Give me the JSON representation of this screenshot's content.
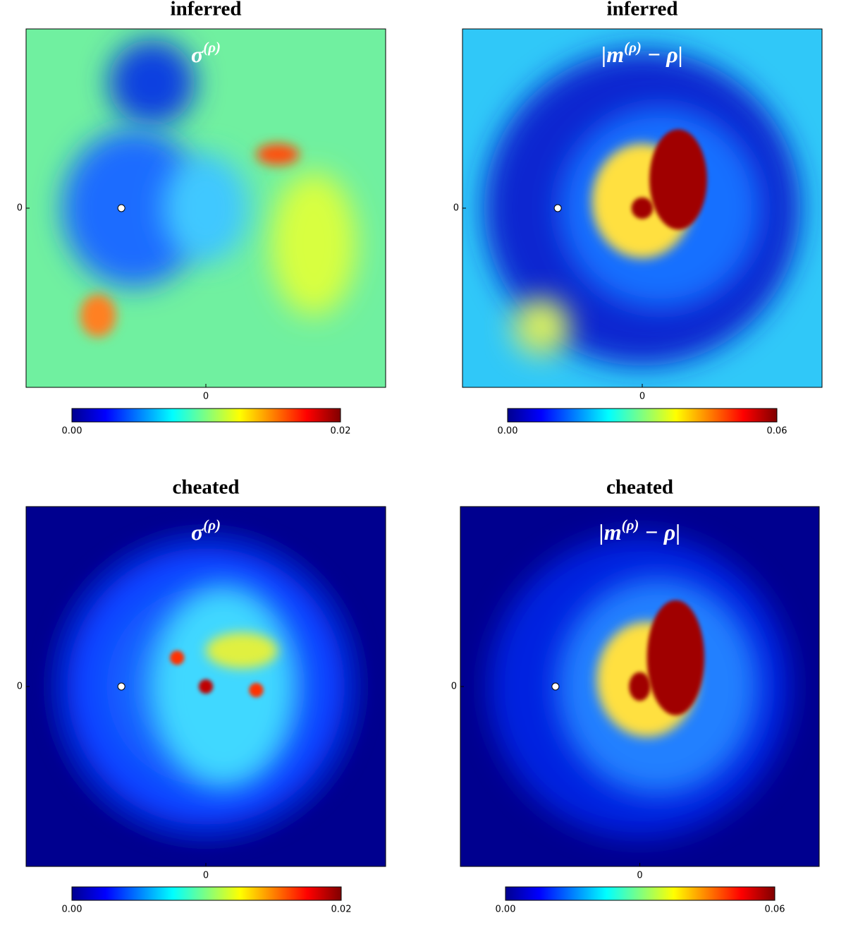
{
  "chart_data": [
    {
      "type": "heatmap",
      "title": "inferred",
      "annotation": [
        "σ",
        "(ρ)"
      ],
      "colormap": "jet",
      "xlim": [
        -1,
        1
      ],
      "ylim": [
        -1,
        1
      ],
      "xticks": [
        0
      ],
      "yticks": [
        0
      ],
      "clim": [
        0,
        0.02
      ],
      "cticks": [
        {
          "value": 0,
          "label": "0.00"
        },
        {
          "value": 0.02,
          "label": "0.02"
        }
      ]
    },
    {
      "type": "heatmap",
      "title": "inferred",
      "annotation": [
        "|m",
        "(ρ)",
        " − ρ|"
      ],
      "colormap": "jet",
      "xlim": [
        -1,
        1
      ],
      "ylim": [
        -1,
        1
      ],
      "xticks": [
        0
      ],
      "yticks": [
        0
      ],
      "clim": [
        0,
        0.06
      ],
      "cticks": [
        {
          "value": 0,
          "label": "0.00"
        },
        {
          "value": 0.06,
          "label": "0.06"
        }
      ]
    },
    {
      "type": "heatmap",
      "title": "cheated",
      "annotation": [
        "σ",
        "(ρ)"
      ],
      "colormap": "jet",
      "xlim": [
        -1,
        1
      ],
      "ylim": [
        -1,
        1
      ],
      "xticks": [
        0
      ],
      "yticks": [
        0
      ],
      "clim": [
        0,
        0.02
      ],
      "cticks": [
        {
          "value": 0,
          "label": "0.00"
        },
        {
          "value": 0.02,
          "label": "0.02"
        }
      ]
    },
    {
      "type": "heatmap",
      "title": "cheated",
      "annotation": [
        "|m",
        "(ρ)",
        " − ρ|"
      ],
      "colormap": "jet",
      "xlim": [
        -1,
        1
      ],
      "ylim": [
        -1,
        1
      ],
      "xticks": [
        0
      ],
      "yticks": [
        0
      ],
      "clim": [
        0,
        0.06
      ],
      "cticks": [
        {
          "value": 0,
          "label": "0.00"
        },
        {
          "value": 0.06,
          "label": "0.06"
        }
      ]
    }
  ]
}
